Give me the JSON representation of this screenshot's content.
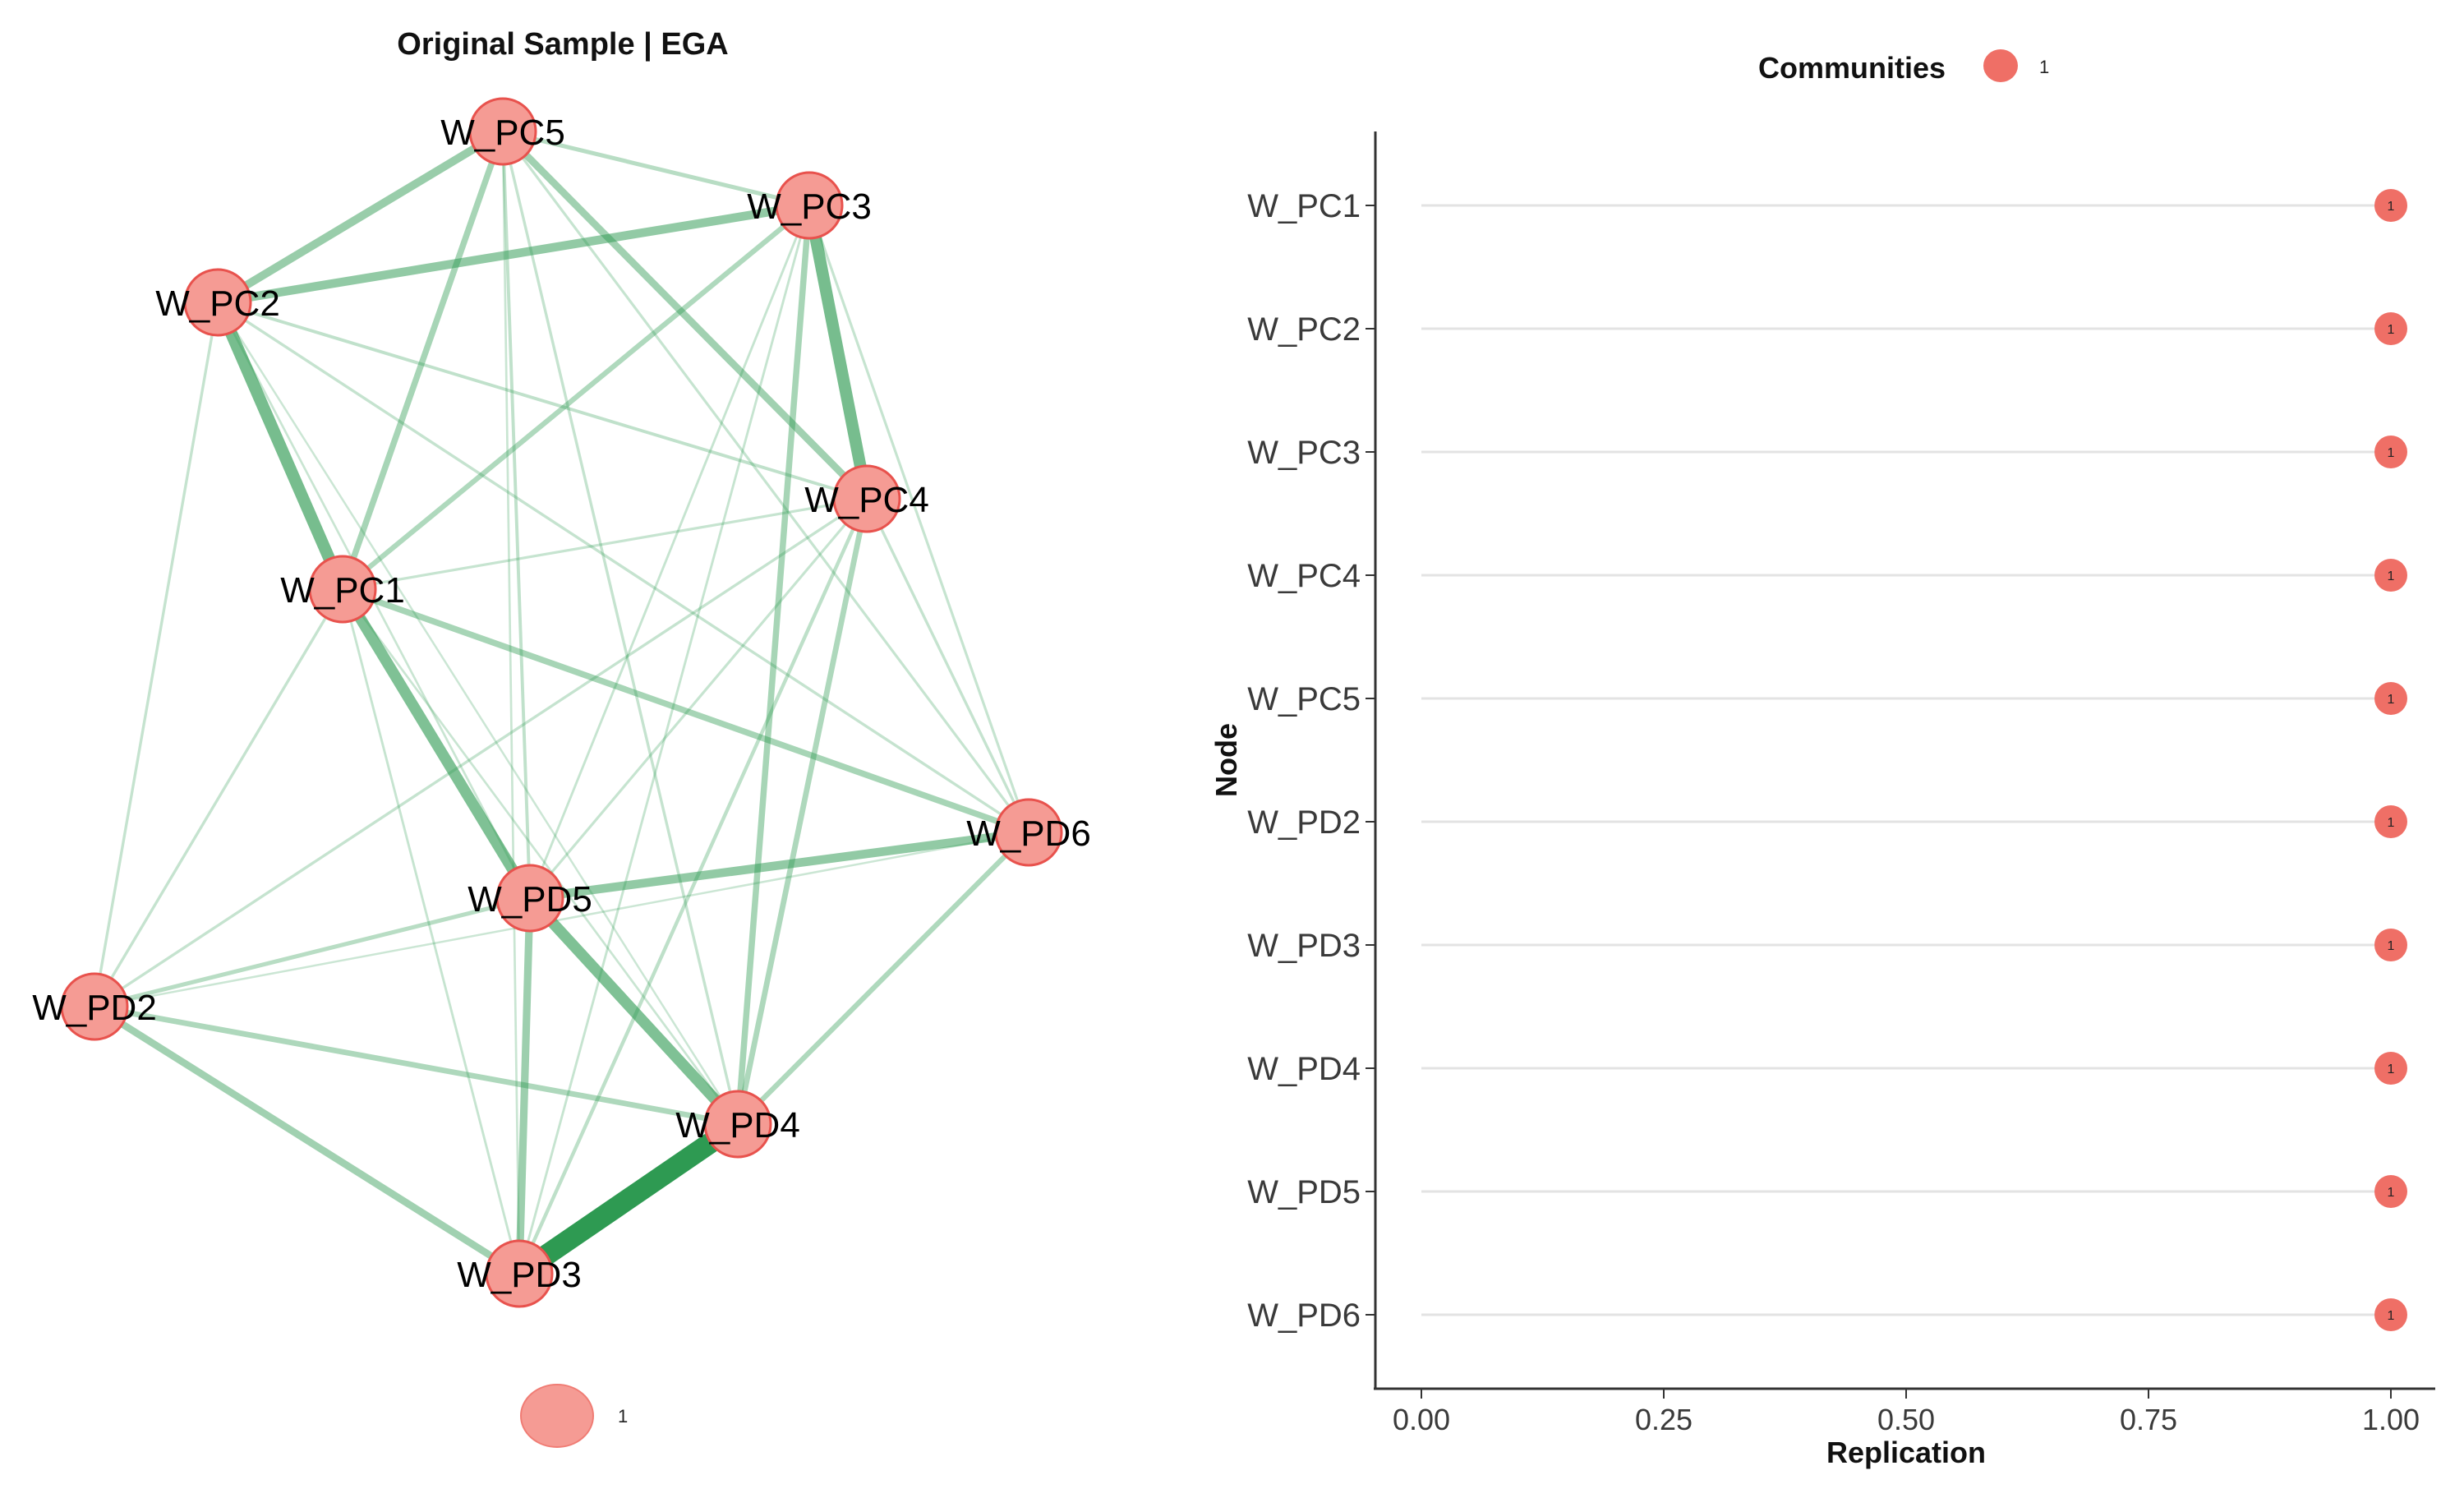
{
  "chart_data": [
    {
      "type": "network",
      "title": "Original Sample | EGA",
      "nodes": [
        {
          "id": "W_PC5",
          "community": "1"
        },
        {
          "id": "W_PC3",
          "community": "1"
        },
        {
          "id": "W_PC2",
          "community": "1"
        },
        {
          "id": "W_PC4",
          "community": "1"
        },
        {
          "id": "W_PC1",
          "community": "1"
        },
        {
          "id": "W_PD6",
          "community": "1"
        },
        {
          "id": "W_PD5",
          "community": "1"
        },
        {
          "id": "W_PD2",
          "community": "1"
        },
        {
          "id": "W_PD4",
          "community": "1"
        },
        {
          "id": "W_PD3",
          "community": "1"
        }
      ],
      "edges": [
        {
          "source": "W_PD3",
          "target": "W_PD4",
          "weight": 1.0
        },
        {
          "source": "W_PC2",
          "target": "W_PC1",
          "weight": 0.55
        },
        {
          "source": "W_PC1",
          "target": "W_PD5",
          "weight": 0.5
        },
        {
          "source": "W_PC3",
          "target": "W_PC4",
          "weight": 0.55
        },
        {
          "source": "W_PD5",
          "target": "W_PD4",
          "weight": 0.5
        },
        {
          "source": "W_PC2",
          "target": "W_PC3",
          "weight": 0.38
        },
        {
          "source": "W_PC5",
          "target": "W_PC2",
          "weight": 0.35
        },
        {
          "source": "W_PD5",
          "target": "W_PD6",
          "weight": 0.38
        },
        {
          "source": "W_PC5",
          "target": "W_PC4",
          "weight": 0.3
        },
        {
          "source": "W_PD2",
          "target": "W_PD3",
          "weight": 0.3
        },
        {
          "source": "W_PD5",
          "target": "W_PD3",
          "weight": 0.32
        },
        {
          "source": "W_PC1",
          "target": "W_PD6",
          "weight": 0.25
        },
        {
          "source": "W_PC1",
          "target": "W_PC5",
          "weight": 0.25
        },
        {
          "source": "W_PC1",
          "target": "W_PC3",
          "weight": 0.2
        },
        {
          "source": "W_PD2",
          "target": "W_PD4",
          "weight": 0.22
        },
        {
          "source": "W_PD4",
          "target": "W_PC4",
          "weight": 0.22
        },
        {
          "source": "W_PD4",
          "target": "W_PC3",
          "weight": 0.25
        },
        {
          "source": "W_PD6",
          "target": "W_PD4",
          "weight": 0.2
        },
        {
          "source": "W_PC5",
          "target": "W_PC3",
          "weight": 0.15
        },
        {
          "source": "W_PD2",
          "target": "W_PD5",
          "weight": 0.15
        },
        {
          "source": "W_PD3",
          "target": "W_PC4",
          "weight": 0.12
        },
        {
          "source": "W_PC2",
          "target": "W_PC4",
          "weight": 0.1
        },
        {
          "source": "W_PC2",
          "target": "W_PD6",
          "weight": 0.08
        },
        {
          "source": "W_PC2",
          "target": "W_PD2",
          "weight": 0.08
        },
        {
          "source": "W_PD2",
          "target": "W_PC1",
          "weight": 0.08
        },
        {
          "source": "W_PD2",
          "target": "W_PC4",
          "weight": 0.08
        },
        {
          "source": "W_PC5",
          "target": "W_PD5",
          "weight": 0.1
        },
        {
          "source": "W_PC5",
          "target": "W_PD4",
          "weight": 0.08
        },
        {
          "source": "W_PC5",
          "target": "W_PD6",
          "weight": 0.07
        },
        {
          "source": "W_PC3",
          "target": "W_PD6",
          "weight": 0.07
        },
        {
          "source": "W_PC4",
          "target": "W_PC1",
          "weight": 0.07
        },
        {
          "source": "W_PC4",
          "target": "W_PD6",
          "weight": 0.08
        },
        {
          "source": "W_PC4",
          "target": "W_PD5",
          "weight": 0.07
        },
        {
          "source": "W_PC3",
          "target": "W_PD5",
          "weight": 0.06
        },
        {
          "source": "W_PC1",
          "target": "W_PD3",
          "weight": 0.06
        },
        {
          "source": "W_PC2",
          "target": "W_PD5",
          "weight": 0.05
        },
        {
          "source": "W_PD2",
          "target": "W_PD6",
          "weight": 0.04
        },
        {
          "source": "W_PC1",
          "target": "W_PD4",
          "weight": 0.05
        },
        {
          "source": "W_PC2",
          "target": "W_PD4",
          "weight": 0.04
        },
        {
          "source": "W_PC3",
          "target": "W_PD3",
          "weight": 0.06
        },
        {
          "source": "W_PC5",
          "target": "W_PD3",
          "weight": 0.05
        }
      ],
      "legend": [
        {
          "label": "1",
          "color": "#f08080"
        }
      ]
    },
    {
      "type": "scatter",
      "legend_title": "Communities",
      "legend_items": [
        {
          "label": "1",
          "color": "#f08080"
        }
      ],
      "xlabel": "Replication",
      "ylabel": "Node",
      "xlim": [
        0,
        1
      ],
      "x_ticks": [
        "0.00",
        "0.25",
        "0.50",
        "0.75",
        "1.00"
      ],
      "categories": [
        "W_PC1",
        "W_PC2",
        "W_PC3",
        "W_PC4",
        "W_PC5",
        "W_PD2",
        "W_PD3",
        "W_PD4",
        "W_PD5",
        "W_PD6"
      ],
      "values": [
        1,
        1,
        1,
        1,
        1,
        1,
        1,
        1,
        1,
        1
      ],
      "point_labels": [
        "1",
        "1",
        "1",
        "1",
        "1",
        "1",
        "1",
        "1",
        "1",
        "1"
      ],
      "grid": "horizontal"
    }
  ],
  "colors": {
    "node_fill": "#f59b94",
    "node_stroke": "#e8524d",
    "edge": "#2e9a52",
    "point_fill": "#ef6f66",
    "grid": "#e3e3e3",
    "axis": "#333333"
  }
}
